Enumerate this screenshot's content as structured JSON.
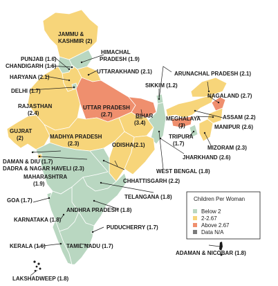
{
  "colors": {
    "below_2": "#b9d7c1",
    "mid": "#f7d57a",
    "above": "#ef8f6e",
    "na": "#7a7a7a",
    "border": "#ffffff"
  },
  "legend": {
    "title": "Children Per Woman",
    "items": [
      {
        "label": "Below 2",
        "category": "below_2"
      },
      {
        "label": "2-2.67",
        "category": "mid"
      },
      {
        "label": "Above 2.67",
        "category": "above"
      },
      {
        "label": "Data N/A",
        "category": "na"
      }
    ]
  },
  "states": [
    {
      "id": "jk",
      "name": "JAMMU &",
      "name2": "KASHMIR",
      "value": "(2)",
      "category": "mid"
    },
    {
      "id": "hp",
      "name": "HIMACHAL",
      "name2": "PRADESH",
      "value": "(1.9)",
      "category": "below_2"
    },
    {
      "id": "pb",
      "name": "PUNJAB",
      "value": "(1.6)",
      "category": "below_2"
    },
    {
      "id": "ch",
      "name": "CHANDIGARH",
      "value": "(1.6)",
      "category": "below_2"
    },
    {
      "id": "uk",
      "name": "UTTARAKHAND",
      "value": "(2.1)",
      "category": "mid"
    },
    {
      "id": "hr",
      "name": "HARYANA",
      "value": "(2.1)",
      "category": "mid"
    },
    {
      "id": "dl",
      "name": "DELHI",
      "value": "(1.7)",
      "category": "below_2"
    },
    {
      "id": "rj",
      "name": "RAJASTHAN",
      "value": "(2.4)",
      "category": "mid"
    },
    {
      "id": "up",
      "name": "UTTAR PRADESH",
      "value": "(2.7)",
      "category": "above"
    },
    {
      "id": "br",
      "name": "BIHAR",
      "value": "(3.4)",
      "category": "above"
    },
    {
      "id": "sk",
      "name": "SIKKIM",
      "value": "(1.2)",
      "category": "below_2"
    },
    {
      "id": "ar",
      "name": "ARUNACHAL PRADESH",
      "value": "(2.1)",
      "category": "mid"
    },
    {
      "id": "nl",
      "name": "NAGALAND",
      "value": "(2.7)",
      "category": "above"
    },
    {
      "id": "as",
      "name": "ASSAM",
      "value": "(2.2)",
      "category": "mid"
    },
    {
      "id": "ml",
      "name": "MEGHALAYA",
      "value": "(3)",
      "category": "above"
    },
    {
      "id": "mn",
      "name": "MANIPUR",
      "value": "(2.6)",
      "category": "mid"
    },
    {
      "id": "mz",
      "name": "MIZORAM",
      "value": "(2.3)",
      "category": "mid"
    },
    {
      "id": "tr",
      "name": "TRIPURA",
      "value": "(1.7)",
      "category": "below_2"
    },
    {
      "id": "gj",
      "name": "GUJRAT",
      "value": "(2)",
      "category": "mid"
    },
    {
      "id": "mp",
      "name": "MADHYA PRADESH",
      "value": "(2.3)",
      "category": "mid"
    },
    {
      "id": "jh",
      "name": "JHARKHAND",
      "value": "(2.6)",
      "category": "mid"
    },
    {
      "id": "wb",
      "name": "WEST BENGAL",
      "value": "(1.8)",
      "category": "below_2"
    },
    {
      "id": "od",
      "name": "ODISHA",
      "value": "(2.1)",
      "category": "mid"
    },
    {
      "id": "cg",
      "name": "CHHATTISGARH",
      "value": "(2.2)",
      "category": "mid"
    },
    {
      "id": "dd",
      "name": "DAMAN & DIU",
      "value": "(1.7)",
      "category": "below_2"
    },
    {
      "id": "dn",
      "name": "DADRA & NAGAR HAVELI",
      "value": "(2.3)",
      "category": "mid"
    },
    {
      "id": "mh",
      "name": "MAHARASHTRA",
      "value": "(1.9)",
      "category": "below_2"
    },
    {
      "id": "tg",
      "name": "TELANGANA",
      "value": "(1.8)",
      "category": "below_2"
    },
    {
      "id": "ga",
      "name": "GOA",
      "value": "(1.7)",
      "category": "below_2"
    },
    {
      "id": "ap",
      "name": "ANDHRA PRADESH",
      "value": "(1.8)",
      "category": "below_2"
    },
    {
      "id": "ka",
      "name": "KARNATAKA",
      "value": "(1.8)",
      "category": "below_2"
    },
    {
      "id": "py",
      "name": "PUDUCHERRY",
      "value": "(1.7)",
      "category": "below_2"
    },
    {
      "id": "kl",
      "name": "KERALA",
      "value": "(1.6)",
      "category": "below_2"
    },
    {
      "id": "tn",
      "name": "TAMIL NADU",
      "value": "(1.7)",
      "category": "below_2"
    },
    {
      "id": "an",
      "name": "ADAMAN & NICOBAR",
      "value": "(1.8)",
      "category": "below_2"
    },
    {
      "id": "ld",
      "name": "LAKSHADWEEP",
      "value": "(1.8)",
      "category": "below_2"
    }
  ]
}
